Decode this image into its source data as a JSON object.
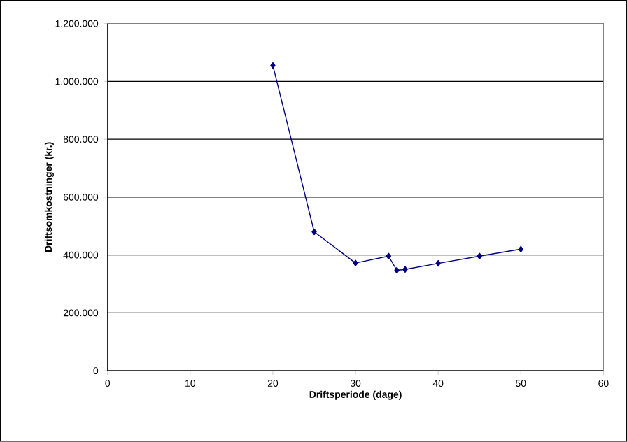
{
  "chart_data": {
    "type": "line",
    "xlabel": "Driftsperiode (dage)",
    "ylabel": "Driftsomkostninger (kr.)",
    "x": [
      20,
      25,
      30,
      34,
      35,
      36,
      40,
      45,
      50
    ],
    "series": [
      {
        "color": "#000080",
        "values": [
          1055000,
          480000,
          372000,
          396000,
          347000,
          350000,
          371000,
          396000,
          420000
        ]
      }
    ],
    "xlim": [
      0,
      60
    ],
    "xticks": [
      0,
      10,
      20,
      30,
      40,
      50,
      60
    ],
    "ylim": [
      0,
      1200000
    ],
    "yticks": [
      {
        "value": 0,
        "label": "0"
      },
      {
        "value": 200000,
        "label": "200.000"
      },
      {
        "value": 400000,
        "label": "400.000"
      },
      {
        "value": 600000,
        "label": "600.000"
      },
      {
        "value": 800000,
        "label": "800.000"
      },
      {
        "value": 1000000,
        "label": "1.000.000"
      },
      {
        "value": 1200000,
        "label": "1.200.000"
      }
    ],
    "grid": "y",
    "marker": "diamond",
    "line_style": "solid"
  }
}
